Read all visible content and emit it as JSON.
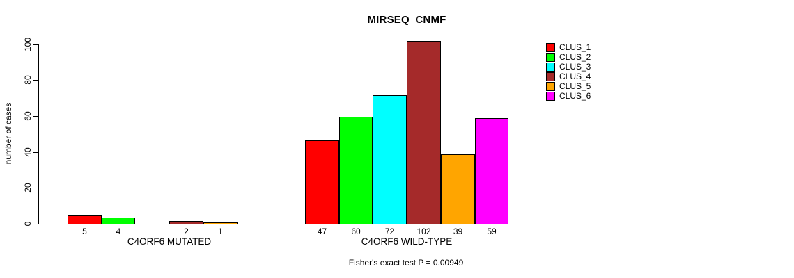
{
  "chart_data": {
    "type": "bar",
    "title": "MIRSEQ_CNMF",
    "ylabel": "number of cases",
    "ylim": [
      0,
      100
    ],
    "yticks": [
      0,
      20,
      40,
      60,
      80,
      100
    ],
    "grid": false,
    "legend_position": "right-outside",
    "categories": [
      "C4ORF6 MUTATED",
      "C4ORF6 WILD-TYPE"
    ],
    "series": [
      {
        "name": "CLUS_1",
        "color": "#FF0000",
        "values": [
          5,
          47
        ]
      },
      {
        "name": "CLUS_2",
        "color": "#00FF00",
        "values": [
          4,
          60
        ]
      },
      {
        "name": "CLUS_3",
        "color": "#00FFFF",
        "values": [
          0,
          72
        ]
      },
      {
        "name": "CLUS_4",
        "color": "#A52A2A",
        "values": [
          2,
          102
        ]
      },
      {
        "name": "CLUS_5",
        "color": "#FFA500",
        "values": [
          1,
          39
        ]
      },
      {
        "name": "CLUS_6",
        "color": "#FF00FF",
        "values": [
          0,
          59
        ]
      }
    ],
    "bar_value_labels": [
      [
        "5",
        "4",
        "",
        "2",
        "1",
        ""
      ],
      [
        "47",
        "60",
        "72",
        "102",
        "39",
        "59"
      ]
    ],
    "annotation": "Fisher's exact test P = 0.00949",
    "axis_color": "#000000",
    "background_color": "#FFFFFF"
  }
}
